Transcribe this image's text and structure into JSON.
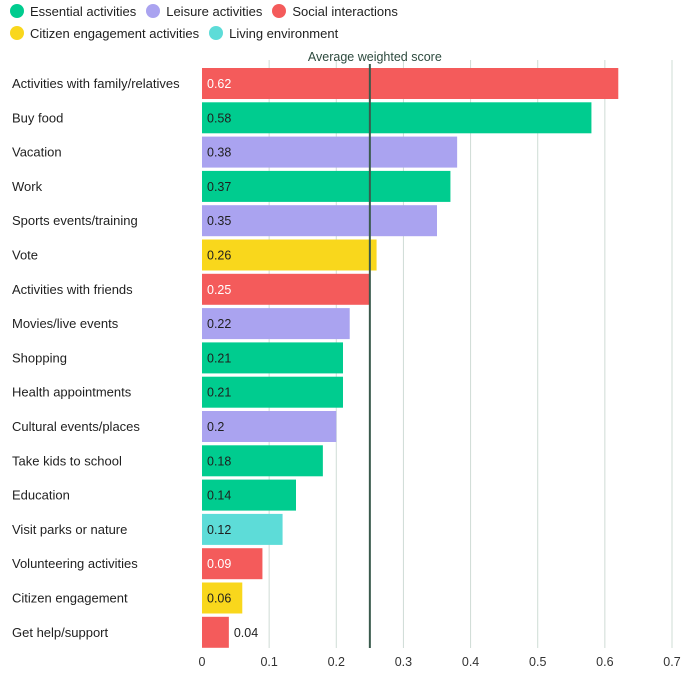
{
  "legend": [
    {
      "label": "Essential activities",
      "color": "#00cc8f"
    },
    {
      "label": "Leisure activities",
      "color": "#aaa3f0"
    },
    {
      "label": "Social interactions",
      "color": "#f45b5b"
    },
    {
      "label": "Citizen engagement activities",
      "color": "#f9d71c"
    },
    {
      "label": "Living environment",
      "color": "#5ddcd8"
    }
  ],
  "chart_data": {
    "type": "bar",
    "orientation": "horizontal",
    "reference_line": {
      "label": "Average weighted score",
      "value": 0.25
    },
    "xlim": [
      0,
      0.7
    ],
    "xticks": [
      0,
      0.1,
      0.2,
      0.3,
      0.4,
      0.5,
      0.6,
      0.7
    ],
    "grid": true,
    "legend_position": "top-left",
    "bars": [
      {
        "label": "Activities with family/relatives",
        "value": 0.62,
        "value_label": "0.62",
        "group": "Social interactions"
      },
      {
        "label": "Buy food",
        "value": 0.58,
        "value_label": "0.58",
        "group": "Essential activities"
      },
      {
        "label": "Vacation",
        "value": 0.38,
        "value_label": "0.38",
        "group": "Leisure activities"
      },
      {
        "label": "Work",
        "value": 0.37,
        "value_label": "0.37",
        "group": "Essential activities"
      },
      {
        "label": "Sports events/training",
        "value": 0.35,
        "value_label": "0.35",
        "group": "Leisure activities"
      },
      {
        "label": "Vote",
        "value": 0.26,
        "value_label": "0.26",
        "group": "Citizen engagement activities"
      },
      {
        "label": "Activities with friends",
        "value": 0.25,
        "value_label": "0.25",
        "group": "Social interactions"
      },
      {
        "label": "Movies/live events",
        "value": 0.22,
        "value_label": "0.22",
        "group": "Leisure activities"
      },
      {
        "label": "Shopping",
        "value": 0.21,
        "value_label": "0.21",
        "group": "Essential activities"
      },
      {
        "label": "Health appointments",
        "value": 0.21,
        "value_label": "0.21",
        "group": "Essential activities"
      },
      {
        "label": "Cultural events/places",
        "value": 0.2,
        "value_label": "0.2",
        "group": "Leisure activities"
      },
      {
        "label": "Take kids to school",
        "value": 0.18,
        "value_label": "0.18",
        "group": "Essential activities"
      },
      {
        "label": "Education",
        "value": 0.14,
        "value_label": "0.14",
        "group": "Essential activities"
      },
      {
        "label": "Visit parks or nature",
        "value": 0.12,
        "value_label": "0.12",
        "group": "Living environment"
      },
      {
        "label": "Volunteering activities",
        "value": 0.09,
        "value_label": "0.09",
        "group": "Social interactions"
      },
      {
        "label": "Citizen engagement",
        "value": 0.06,
        "value_label": "0.06",
        "group": "Citizen engagement activities"
      },
      {
        "label": "Get help/support",
        "value": 0.04,
        "value_label": "0.04",
        "group": "Social interactions"
      }
    ]
  }
}
